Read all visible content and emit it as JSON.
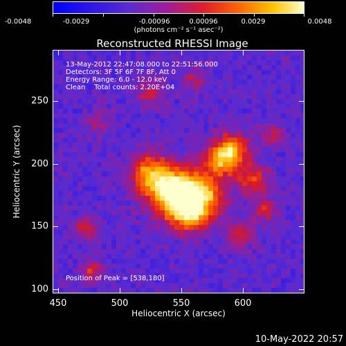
{
  "colorbar": {
    "ticks": [
      "-0.0048",
      "-0.0029",
      "-0.00096",
      "0.00096",
      "0.0029",
      "0.0048"
    ],
    "units": "(photons cm⁻² s⁻¹ asec⁻²)"
  },
  "chart_data": {
    "type": "heatmap",
    "title": "Reconstructed RHESSI Image",
    "xlabel": "Heliocentric X (arcsec)",
    "ylabel": "Heliocentric Y (arcsec)",
    "xlim": [
      445,
      640
    ],
    "ylim": [
      98,
      294
    ],
    "x_ticks": [
      "450",
      "500",
      "550",
      "600"
    ],
    "y_ticks": [
      "100",
      "150",
      "200",
      "250"
    ],
    "value_range": [
      -0.0048,
      0.0048
    ],
    "peak": [
      538,
      180
    ],
    "annotations": [
      "13-May-2012 22:47:08.000 to 22:51:56.000",
      "Detectors: 3F 5F 6F 7F 8F, Att 0",
      "Energy Range: 6.0 - 12.0 keV",
      "Clean    Total counts: 2.20E+04",
      "Position of Peak = [538,180]"
    ]
  },
  "footer": {
    "date": "10-May-2022 20:57"
  },
  "colors": {
    "background": "#000000",
    "axis": "#ffffff",
    "colormap_low": "#0000ff",
    "colormap_high": "#ffffcc"
  }
}
